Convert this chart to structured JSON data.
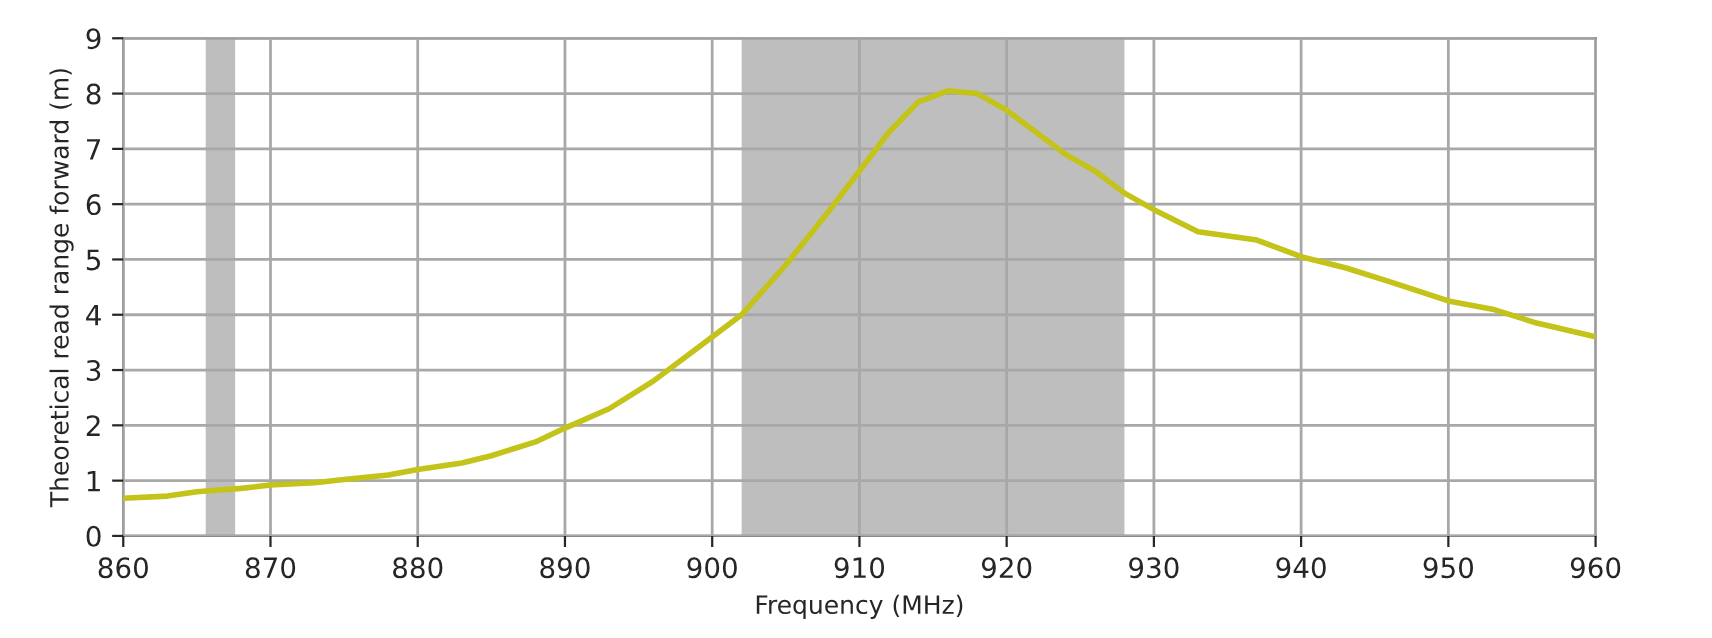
{
  "chart_data": {
    "type": "line",
    "xlabel": "Frequency (MHz)",
    "ylabel": "Theoretical read range forward (m)",
    "x": [
      860,
      863,
      865,
      868,
      870,
      873,
      875,
      878,
      880,
      883,
      885,
      888,
      890,
      893,
      896,
      899,
      902,
      905,
      908,
      910,
      912,
      914,
      916,
      918,
      920,
      922,
      924,
      926,
      928,
      930,
      933,
      937,
      940,
      943,
      946,
      950,
      953,
      956,
      960
    ],
    "series": [
      {
        "color": "#c3c31a",
        "values": [
          0.68,
          0.72,
          0.8,
          0.86,
          0.92,
          0.96,
          1.02,
          1.1,
          1.2,
          1.32,
          1.45,
          1.7,
          1.95,
          2.3,
          2.8,
          3.4,
          4.0,
          4.9,
          5.9,
          6.6,
          7.3,
          7.85,
          8.05,
          8.0,
          7.7,
          7.3,
          6.9,
          6.6,
          6.2,
          5.9,
          5.5,
          5.35,
          5.05,
          4.85,
          4.6,
          4.25,
          4.1,
          3.85,
          3.6
        ]
      }
    ],
    "bands": [
      {
        "axis": "x",
        "from": 865.6,
        "to": 867.6,
        "color": "#bebebe"
      },
      {
        "axis": "x",
        "from": 902,
        "to": 928,
        "color": "#bebebe"
      }
    ],
    "xlim": [
      860,
      960
    ],
    "xticks": [
      860,
      870,
      880,
      890,
      900,
      910,
      920,
      930,
      940,
      950,
      960
    ],
    "ylim": [
      0,
      9
    ],
    "yticks": [
      0,
      1,
      2,
      3,
      4,
      5,
      6,
      7,
      8,
      9
    ],
    "grid": true
  }
}
